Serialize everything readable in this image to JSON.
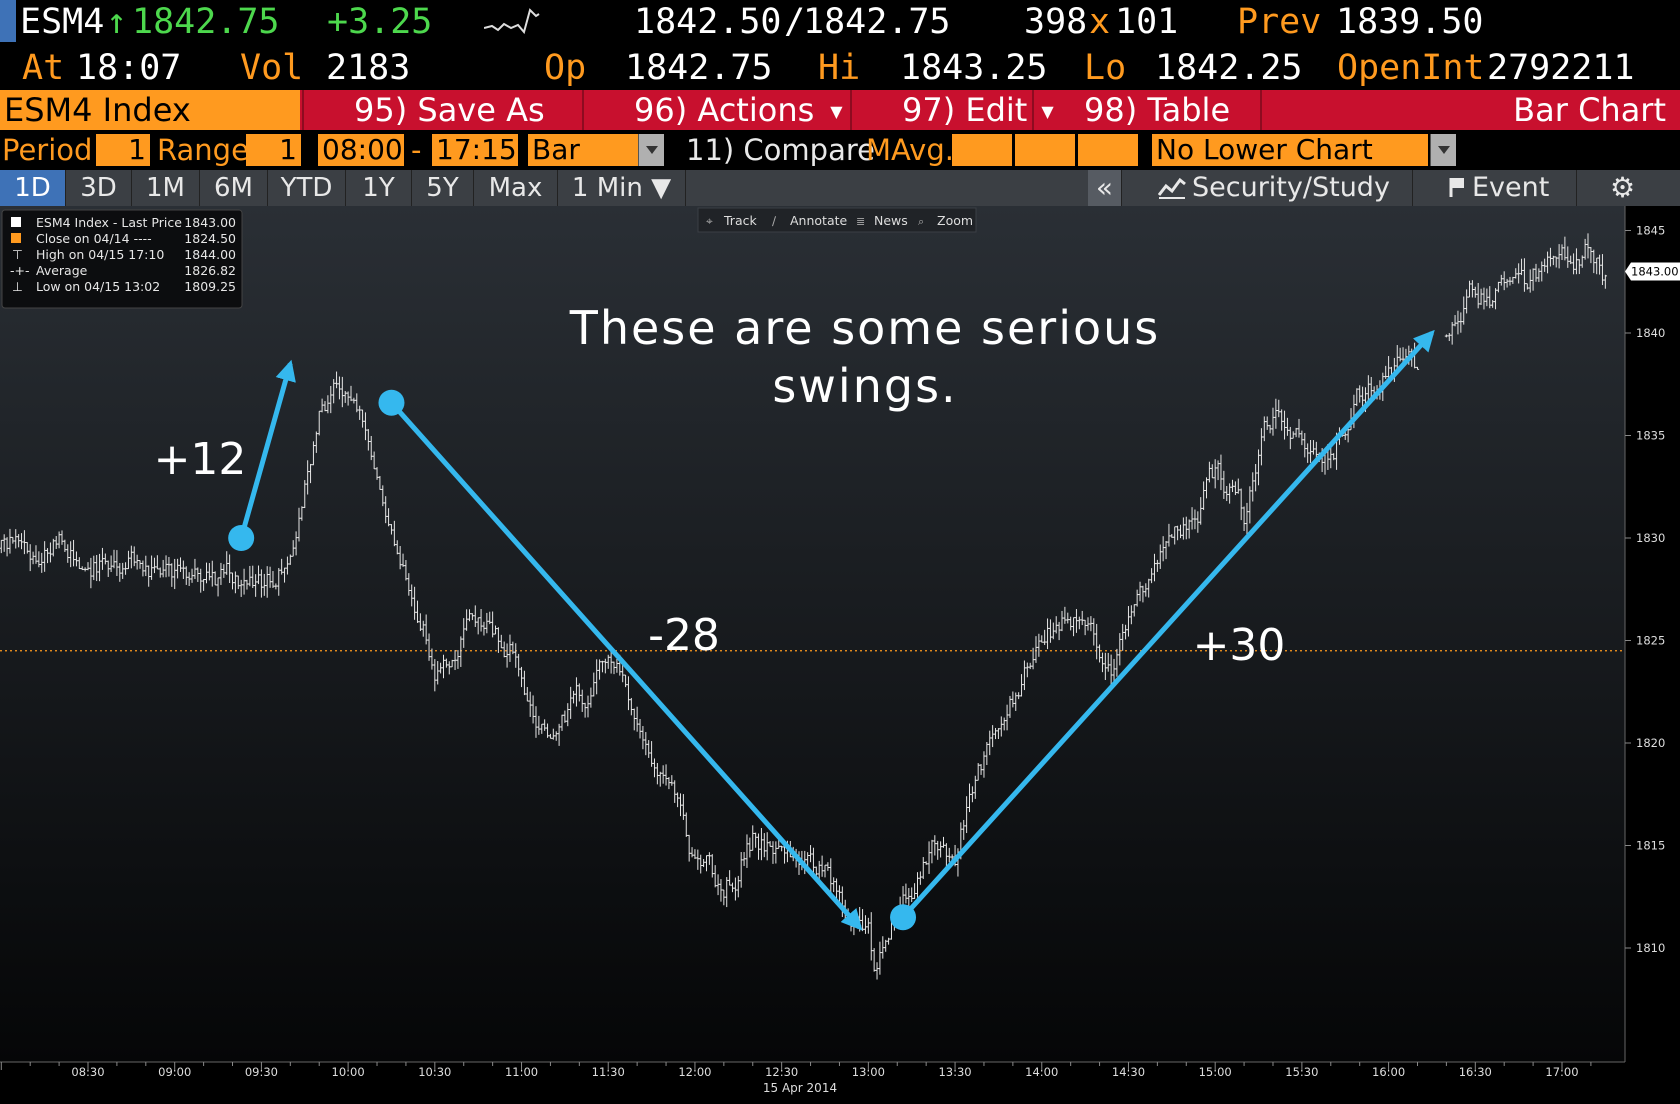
{
  "quote": {
    "ticker": "ESM4",
    "arrow": "↑",
    "last": "1842.75",
    "change": "+3.25",
    "bid": "1842.50",
    "sep": "/",
    "ask": "1842.75",
    "size_bid": "398",
    "size_x": "x",
    "size_ask": "101",
    "prev_label": "Prev",
    "prev": "1839.50",
    "at_label": "At",
    "time": "18:07",
    "vol_label": "Vol",
    "vol": "2183",
    "op_label": "Op",
    "op": "1842.75",
    "hi_label": "Hi",
    "hi": "1843.25",
    "lo_label": "Lo",
    "lo": "1842.25",
    "oi_label": "OpenInt",
    "oi": "2792211"
  },
  "menu": {
    "title": "ESM4 Index",
    "save_as": "95) Save As",
    "actions": "96) Actions",
    "edit": "97) Edit",
    "table": "98) Table",
    "chart_type": "Bar Chart"
  },
  "params": {
    "period_label": "Period",
    "period_value": "1",
    "range_label": "Range",
    "range_value": "1",
    "time_from": "08:00",
    "dash": "-",
    "time_to": "17:15",
    "bar_type": "Bar",
    "compare": "11) Compare",
    "mavg": "MAvg.",
    "lower_chart": "No Lower Chart"
  },
  "tabs": {
    "items": [
      "1D",
      "3D",
      "1M",
      "6M",
      "YTD",
      "1Y",
      "5Y",
      "Max"
    ],
    "selected": "1D",
    "interval": "1 Min ▼",
    "collapse": "«",
    "security_study": "Security/Study",
    "event": "Event",
    "icons": [
      "chart-line-icon",
      "flag-icon",
      "gear-icon"
    ]
  },
  "toolbar": {
    "track": "Track",
    "annotate": "Annotate",
    "news": "News",
    "zoom": "Zoom"
  },
  "legend": {
    "rows": [
      {
        "label": "ESM4 Index - Last Price",
        "value": "1843.00"
      },
      {
        "label": "Close on 04/14 ----",
        "value": "1824.50"
      },
      {
        "label": "High on 04/15 17:10",
        "value": "1844.00"
      },
      {
        "label": "Average",
        "value": "1826.82"
      },
      {
        "label": "Low on 04/15 13:02",
        "value": "1809.25"
      }
    ]
  },
  "annotations": {
    "headline": [
      "These are some serious",
      "swings."
    ],
    "up1": "+12",
    "down": "-28",
    "up2": "+30"
  },
  "colors": {
    "background": "#000000",
    "plot_top": "#2a2f35",
    "accent_orange": "#ff9a1f",
    "menu_red": "#c8102e",
    "tab_blue": "#3e72b7",
    "arrow_blue": "#35b8ee",
    "positive_green": "#4dd84d"
  },
  "chart_data": {
    "type": "bar",
    "series_name": "ESM4 Index - Last Price",
    "date_label": "15 Apr 2014",
    "x_ticks": [
      "08:30",
      "09:00",
      "09:30",
      "10:00",
      "10:30",
      "11:00",
      "11:30",
      "12:00",
      "12:30",
      "13:00",
      "13:30",
      "14:00",
      "14:30",
      "15:00",
      "15:30",
      "16:00",
      "16:30",
      "17:00"
    ],
    "x_range": [
      "08:00",
      "17:15"
    ],
    "y_ticks": [
      1810,
      1815,
      1820,
      1825,
      1830,
      1835,
      1840,
      1845
    ],
    "ylim": [
      1807.5,
      1846.5
    ],
    "last_price_label": "1843.00",
    "prev_close": 1824.5,
    "grid": false,
    "legend_position": "top-left",
    "price_path": [
      {
        "t": "08:00",
        "p": 1829.5
      },
      {
        "t": "08:20",
        "p": 1829.8
      },
      {
        "t": "08:30",
        "p": 1829.0
      },
      {
        "t": "08:45",
        "p": 1828.5
      },
      {
        "t": "09:00",
        "p": 1827.5
      },
      {
        "t": "09:15",
        "p": 1828.0
      },
      {
        "t": "09:25",
        "p": 1828.0
      },
      {
        "t": "09:35",
        "p": 1828.0
      },
      {
        "t": "09:40",
        "p": 1830.0
      },
      {
        "t": "09:50",
        "p": 1836.0
      },
      {
        "t": "09:55",
        "p": 1836.8
      },
      {
        "t": "10:05",
        "p": 1835.0
      },
      {
        "t": "10:15",
        "p": 1831.0
      },
      {
        "t": "10:30",
        "p": 1824.0
      },
      {
        "t": "10:45",
        "p": 1826.0
      },
      {
        "t": "11:00",
        "p": 1824.0
      },
      {
        "t": "11:05",
        "p": 1820.0
      },
      {
        "t": "11:15",
        "p": 1821.0
      },
      {
        "t": "11:30",
        "p": 1824.0
      },
      {
        "t": "11:45",
        "p": 1820.0
      },
      {
        "t": "12:00",
        "p": 1814.0
      },
      {
        "t": "12:10",
        "p": 1813.0
      },
      {
        "t": "12:20",
        "p": 1815.5
      },
      {
        "t": "12:30",
        "p": 1815.0
      },
      {
        "t": "12:45",
        "p": 1813.5
      },
      {
        "t": "13:00",
        "p": 1811.0
      },
      {
        "t": "13:02",
        "p": 1809.25
      },
      {
        "t": "13:10",
        "p": 1812.0
      },
      {
        "t": "13:20",
        "p": 1814.5
      },
      {
        "t": "13:30",
        "p": 1815.0
      },
      {
        "t": "13:40",
        "p": 1819.0
      },
      {
        "t": "14:00",
        "p": 1825.0
      },
      {
        "t": "14:10",
        "p": 1826.0
      },
      {
        "t": "14:25",
        "p": 1824.0
      },
      {
        "t": "14:40",
        "p": 1828.0
      },
      {
        "t": "14:50",
        "p": 1831.0
      },
      {
        "t": "15:00",
        "p": 1833.0
      },
      {
        "t": "15:10",
        "p": 1831.0
      },
      {
        "t": "15:20",
        "p": 1836.0
      },
      {
        "t": "15:30",
        "p": 1835.5
      },
      {
        "t": "15:40",
        "p": 1834.0
      },
      {
        "t": "15:50",
        "p": 1837.0
      },
      {
        "t": "16:00",
        "p": 1838.5
      },
      {
        "t": "16:10",
        "p": 1838.5
      },
      {
        "t": "16:20",
        "p": 1840.0
      },
      {
        "t": "16:30",
        "p": 1842.0
      },
      {
        "t": "16:45",
        "p": 1842.5
      },
      {
        "t": "17:00",
        "p": 1843.0
      },
      {
        "t": "17:10",
        "p": 1844.0
      },
      {
        "t": "17:15",
        "p": 1843.0
      }
    ],
    "gaps": [
      {
        "from": "16:10",
        "to": "16:20"
      }
    ],
    "arrows": [
      {
        "label": "+12",
        "from": {
          "t": "09:23",
          "p": 1830.0
        },
        "to": {
          "t": "09:40",
          "p": 1838.5
        }
      },
      {
        "label": "-28",
        "from": {
          "t": "10:15",
          "p": 1836.6
        },
        "to": {
          "t": "12:57",
          "p": 1811.0
        }
      },
      {
        "label": "+30",
        "from": {
          "t": "13:12",
          "p": 1811.5
        },
        "to": {
          "t": "16:15",
          "p": 1840.0
        }
      }
    ]
  }
}
